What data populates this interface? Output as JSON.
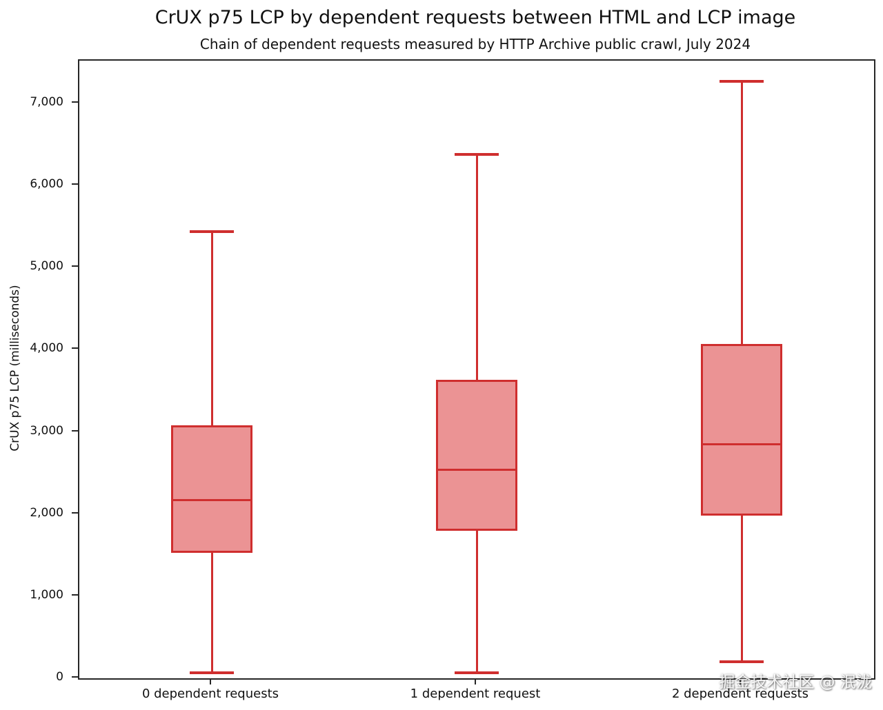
{
  "title": "CrUX p75 LCP by dependent requests between HTML and LCP image",
  "subtitle": "Chain of dependent requests measured by HTTP Archive public crawl, July 2024",
  "watermark": "掘金技术社区 @ 泯泷",
  "chart_data": {
    "type": "boxplot",
    "title": "CrUX p75 LCP by dependent requests between HTML and LCP image",
    "subtitle": "Chain of dependent requests measured by HTTP Archive public crawl, July 2024",
    "xlabel": "",
    "ylabel": "CrUX p75 LCP (milliseconds)",
    "ylim": [
      0,
      7520
    ],
    "yticks": [
      0,
      1000,
      2000,
      3000,
      4000,
      5000,
      6000,
      7000
    ],
    "ytick_labels": [
      "0",
      "1,000",
      "2,000",
      "3,000",
      "4,000",
      "5,000",
      "6,000",
      "7,000"
    ],
    "grid": false,
    "legend": "none",
    "categories": [
      "0 dependent requests",
      "1 dependent request",
      "2 dependent requests"
    ],
    "series": [
      {
        "label": "0 dependent requests",
        "min": 70,
        "q1": 1530,
        "median": 2170,
        "q3": 3080,
        "max": 5440
      },
      {
        "label": "1 dependent request",
        "min": 65,
        "q1": 1800,
        "median": 2540,
        "q3": 3630,
        "max": 6380
      },
      {
        "label": "2 dependent requests",
        "min": 200,
        "q1": 1980,
        "median": 2850,
        "q3": 4070,
        "max": 7270
      }
    ],
    "colors": {
      "box_edge": "#cf2e2e",
      "box_fill": "#eb9394",
      "whisker": "#cf2e2e",
      "median": "#cf2e2e",
      "axis": "#262626",
      "text": "#111111"
    }
  }
}
